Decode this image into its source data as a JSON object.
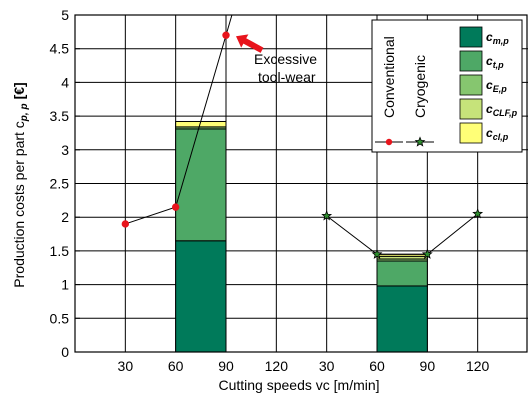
{
  "chart_data": {
    "type": "bar",
    "ylabel": "Production costs per part c",
    "ylabel_sub": "p, p",
    "ylabel_unit": "[€]",
    "xlabel": "Cutting speeds vc [m/min]",
    "ylim": [
      0,
      5
    ],
    "y_ticks": [
      "0",
      "0.5",
      "1",
      "1.5",
      "2",
      "2.5",
      "3",
      "3.5",
      "4",
      "4.5",
      "5"
    ],
    "x_ticks": [
      {
        "label": "30",
        "group": "Conventional",
        "speed": 30
      },
      {
        "label": "60",
        "group": "Conventional",
        "speed": 60
      },
      {
        "label": "90",
        "group": "Conventional",
        "speed": 90
      },
      {
        "label": "120",
        "group": "Conventional",
        "speed": 120
      },
      {
        "label": "30",
        "group": "Cryogenic",
        "speed": 30
      },
      {
        "label": "60",
        "group": "Cryogenic",
        "speed": 60
      },
      {
        "label": "90",
        "group": "Cryogenic",
        "speed": 90
      },
      {
        "label": "120",
        "group": "Cryogenic",
        "speed": 120
      }
    ],
    "grid": true,
    "legend_placement": "top-right",
    "stack_components": [
      {
        "id": "c_m",
        "base": "c",
        "sub": "m,p",
        "color": "#007a5a"
      },
      {
        "id": "c_t",
        "base": "c",
        "sub": "t,p",
        "color": "#4ea866"
      },
      {
        "id": "c_E",
        "base": "c",
        "sub": "E,p",
        "color": "#86c66f"
      },
      {
        "id": "c_CLF",
        "base": "c",
        "sub": "CLF,p",
        "color": "#c6e37a"
      },
      {
        "id": "c_cl",
        "base": "c",
        "sub": "cl,p",
        "color": "#ffff77"
      }
    ],
    "stacked_bars": [
      {
        "group": "Conventional",
        "speed_range": [
          60,
          90
        ],
        "values": {
          "c_m": 1.65,
          "c_t": 1.66,
          "c_E": 0.03,
          "c_CLF": 0.0,
          "c_cl": 0.08
        }
      },
      {
        "group": "Cryogenic",
        "speed_range": [
          60,
          90
        ],
        "values": {
          "c_m": 0.98,
          "c_t": 0.37,
          "c_E": 0.03,
          "c_CLF": 0.04,
          "c_cl": 0.03
        }
      }
    ],
    "series": [
      {
        "name": "Conventional",
        "group": "Conventional",
        "marker": "circle",
        "color": "#e8141c",
        "points": [
          {
            "speed": 30,
            "y": 1.9
          },
          {
            "speed": 60,
            "y": 2.15
          },
          {
            "speed": 90,
            "y": 4.7
          }
        ],
        "extends_above_top": true
      },
      {
        "name": "Cryogenic",
        "group": "Cryogenic",
        "marker": "star",
        "color": "#2f8f2f",
        "points": [
          {
            "speed": 30,
            "y": 2.02
          },
          {
            "speed": 60,
            "y": 1.45
          },
          {
            "speed": 90,
            "y": 1.45
          },
          {
            "speed": 120,
            "y": 2.05
          }
        ]
      }
    ],
    "annotations": [
      {
        "text_line1": "Excessive",
        "text_line2": "tool-wear",
        "arrow_color": "#e8141c",
        "points_to": {
          "group": "Conventional",
          "speed": 90,
          "y": 4.7
        }
      }
    ]
  }
}
